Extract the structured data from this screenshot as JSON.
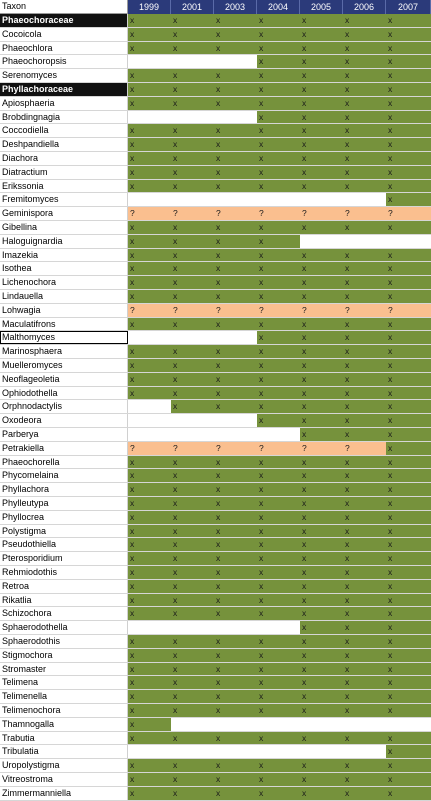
{
  "header": {
    "taxon_label": "Taxon",
    "years": [
      "1999",
      "2001",
      "2003",
      "2004",
      "2005",
      "2006",
      "2007"
    ]
  },
  "colors": {
    "present": "#76923c",
    "uncertain": "#fabf8f",
    "absent": "#ffffff",
    "family_bg": "#111111",
    "year_header_bg": "#2b3a7a"
  },
  "rows": [
    {
      "name": "Phaeochoraceae",
      "family": true,
      "marks": [
        "x",
        "x",
        "x",
        "x",
        "x",
        "x",
        "x"
      ]
    },
    {
      "name": "Cocoicola",
      "marks": [
        "x",
        "x",
        "x",
        "x",
        "x",
        "x",
        "x"
      ]
    },
    {
      "name": "Phaeochlora",
      "marks": [
        "x",
        "x",
        "x",
        "x",
        "x",
        "x",
        "x"
      ]
    },
    {
      "name": "Phaeochoropsis",
      "marks": [
        "-",
        "-",
        "-",
        "x",
        "x",
        "x",
        "x"
      ]
    },
    {
      "name": "Serenomyces",
      "marks": [
        "x",
        "x",
        "x",
        "x",
        "x",
        "x",
        "x"
      ]
    },
    {
      "name": "Phyllachoraceae",
      "family": true,
      "marks": [
        "x",
        "x",
        "x",
        "x",
        "x",
        "x",
        "x"
      ]
    },
    {
      "name": "Apiosphaeria",
      "marks": [
        "x",
        "x",
        "x",
        "x",
        "x",
        "x",
        "x"
      ]
    },
    {
      "name": "Brobdingnagia",
      "marks": [
        "-",
        "-",
        "-",
        "x",
        "x",
        "x",
        "x"
      ]
    },
    {
      "name": "Coccodiella",
      "marks": [
        "x",
        "x",
        "x",
        "x",
        "x",
        "x",
        "x"
      ]
    },
    {
      "name": "Deshpandiella",
      "marks": [
        "x",
        "x",
        "x",
        "x",
        "x",
        "x",
        "x"
      ]
    },
    {
      "name": "Diachora",
      "marks": [
        "x",
        "x",
        "x",
        "x",
        "x",
        "x",
        "x"
      ]
    },
    {
      "name": "Diatractium",
      "marks": [
        "x",
        "x",
        "x",
        "x",
        "x",
        "x",
        "x"
      ]
    },
    {
      "name": "Erikssonia",
      "marks": [
        "x",
        "x",
        "x",
        "x",
        "x",
        "x",
        "x"
      ]
    },
    {
      "name": "Fremitomyces",
      "marks": [
        "-",
        "-",
        "-",
        "-",
        "-",
        "-",
        "x"
      ]
    },
    {
      "name": "Geminispora",
      "marks": [
        "?",
        "?",
        "?",
        "?",
        "?",
        "?",
        "?"
      ]
    },
    {
      "name": "Gibellina",
      "marks": [
        "x",
        "x",
        "x",
        "x",
        "x",
        "x",
        "x"
      ]
    },
    {
      "name": "Haloguignardia",
      "marks": [
        "x",
        "x",
        "x",
        "x",
        "-",
        "-",
        "-"
      ]
    },
    {
      "name": "Imazekia",
      "marks": [
        "x",
        "x",
        "x",
        "x",
        "x",
        "x",
        "x"
      ]
    },
    {
      "name": "Isothea",
      "marks": [
        "x",
        "x",
        "x",
        "x",
        "x",
        "x",
        "x"
      ]
    },
    {
      "name": "Lichenochora",
      "marks": [
        "x",
        "x",
        "x",
        "x",
        "x",
        "x",
        "x"
      ]
    },
    {
      "name": "Lindauella",
      "marks": [
        "x",
        "x",
        "x",
        "x",
        "x",
        "x",
        "x"
      ]
    },
    {
      "name": "Lohwagia",
      "marks": [
        "?",
        "?",
        "?",
        "?",
        "?",
        "?",
        "?"
      ]
    },
    {
      "name": "Maculatifrons",
      "marks": [
        "x",
        "x",
        "x",
        "x",
        "x",
        "x",
        "x"
      ]
    },
    {
      "name": "Malthomyces",
      "selected": true,
      "marks": [
        "-",
        "-",
        "-",
        "x",
        "x",
        "x",
        "x"
      ]
    },
    {
      "name": "Marinosphaera",
      "marks": [
        "x",
        "x",
        "x",
        "x",
        "x",
        "x",
        "x"
      ]
    },
    {
      "name": "Muelleromyces",
      "marks": [
        "x",
        "x",
        "x",
        "x",
        "x",
        "x",
        "x"
      ]
    },
    {
      "name": "Neoflageoletia",
      "marks": [
        "x",
        "x",
        "x",
        "x",
        "x",
        "x",
        "x"
      ]
    },
    {
      "name": "Ophiodothella",
      "marks": [
        "x",
        "x",
        "x",
        "x",
        "x",
        "x",
        "x"
      ]
    },
    {
      "name": "Orphnodactylis",
      "marks": [
        "-",
        "x",
        "x",
        "x",
        "x",
        "x",
        "x"
      ]
    },
    {
      "name": "Oxodeora",
      "marks": [
        "-",
        "-",
        "-",
        "x",
        "x",
        "x",
        "x"
      ]
    },
    {
      "name": "Parberya",
      "marks": [
        "-",
        "-",
        "-",
        "-",
        "x",
        "x",
        "x"
      ]
    },
    {
      "name": "Petrakiella",
      "marks": [
        "?",
        "?",
        "?",
        "?",
        "?",
        "?",
        "x"
      ]
    },
    {
      "name": "Phaeochorella",
      "marks": [
        "x",
        "x",
        "x",
        "x",
        "x",
        "x",
        "x"
      ]
    },
    {
      "name": "Phycomelaina",
      "marks": [
        "x",
        "x",
        "x",
        "x",
        "x",
        "x",
        "x"
      ]
    },
    {
      "name": "Phyllachora",
      "marks": [
        "x",
        "x",
        "x",
        "x",
        "x",
        "x",
        "x"
      ]
    },
    {
      "name": "Phylleutypa",
      "marks": [
        "x",
        "x",
        "x",
        "x",
        "x",
        "x",
        "x"
      ]
    },
    {
      "name": "Phyllocrea",
      "marks": [
        "x",
        "x",
        "x",
        "x",
        "x",
        "x",
        "x"
      ]
    },
    {
      "name": "Polystigma",
      "marks": [
        "x",
        "x",
        "x",
        "x",
        "x",
        "x",
        "x"
      ]
    },
    {
      "name": "Pseudothiella",
      "marks": [
        "x",
        "x",
        "x",
        "x",
        "x",
        "x",
        "x"
      ]
    },
    {
      "name": "Pterosporidium",
      "marks": [
        "x",
        "x",
        "x",
        "x",
        "x",
        "x",
        "x"
      ]
    },
    {
      "name": "Rehmiodothis",
      "marks": [
        "x",
        "x",
        "x",
        "x",
        "x",
        "x",
        "x"
      ]
    },
    {
      "name": "Retroa",
      "marks": [
        "x",
        "x",
        "x",
        "x",
        "x",
        "x",
        "x"
      ]
    },
    {
      "name": "Rikatlia",
      "marks": [
        "x",
        "x",
        "x",
        "x",
        "x",
        "x",
        "x"
      ]
    },
    {
      "name": "Schizochora",
      "marks": [
        "x",
        "x",
        "x",
        "x",
        "x",
        "x",
        "x"
      ]
    },
    {
      "name": "Sphaerodothella",
      "marks": [
        "-",
        "-",
        "-",
        "-",
        "x",
        "x",
        "x"
      ]
    },
    {
      "name": "Sphaerodothis",
      "marks": [
        "x",
        "x",
        "x",
        "x",
        "x",
        "x",
        "x"
      ]
    },
    {
      "name": "Stigmochora",
      "marks": [
        "x",
        "x",
        "x",
        "x",
        "x",
        "x",
        "x"
      ]
    },
    {
      "name": "Stromaster",
      "marks": [
        "x",
        "x",
        "x",
        "x",
        "x",
        "x",
        "x"
      ]
    },
    {
      "name": "Telimena",
      "marks": [
        "x",
        "x",
        "x",
        "x",
        "x",
        "x",
        "x"
      ]
    },
    {
      "name": "Telimenella",
      "marks": [
        "x",
        "x",
        "x",
        "x",
        "x",
        "x",
        "x"
      ]
    },
    {
      "name": "Telimenochora",
      "marks": [
        "x",
        "x",
        "x",
        "x",
        "x",
        "x",
        "x"
      ]
    },
    {
      "name": "Thamnogalla",
      "marks": [
        "x",
        "-",
        "-",
        "-",
        "-",
        "-",
        "-"
      ]
    },
    {
      "name": "Trabutia",
      "marks": [
        "x",
        "x",
        "x",
        "x",
        "x",
        "x",
        "x"
      ]
    },
    {
      "name": "Tribulatia",
      "marks": [
        "-",
        "-",
        "-",
        "-",
        "-",
        "-",
        "x"
      ]
    },
    {
      "name": "Uropolystigma",
      "marks": [
        "x",
        "x",
        "x",
        "x",
        "x",
        "x",
        "x"
      ]
    },
    {
      "name": "Vitreostroma",
      "marks": [
        "x",
        "x",
        "x",
        "x",
        "x",
        "x",
        "x"
      ]
    },
    {
      "name": "Zimmermanniella",
      "marks": [
        "x",
        "x",
        "x",
        "x",
        "x",
        "x",
        "x"
      ]
    }
  ]
}
